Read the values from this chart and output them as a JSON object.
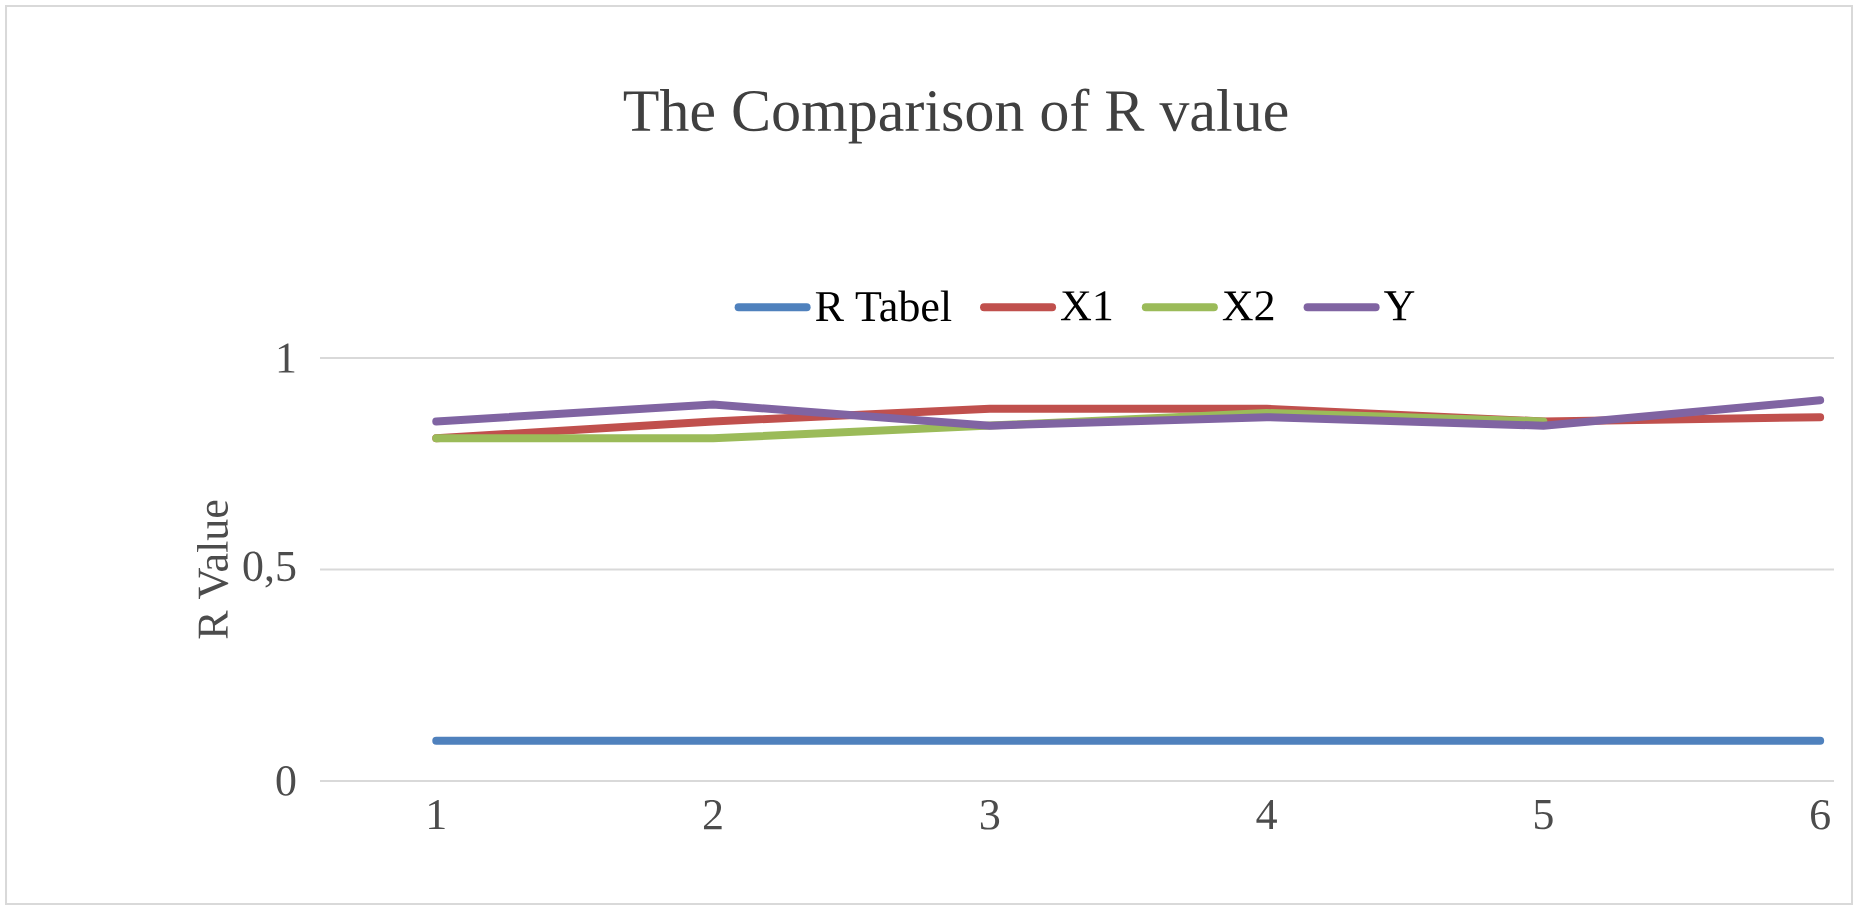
{
  "chart_data": {
    "type": "line",
    "title": "The Comparison of  R value",
    "ylabel": "R Value",
    "categories": [
      "1",
      "2",
      "3",
      "4",
      "5",
      "6"
    ],
    "series": [
      {
        "name": "R Tabel",
        "color": "#4f81bd",
        "values": [
          0.095,
          0.095,
          0.095,
          0.095,
          0.095,
          0.095
        ]
      },
      {
        "name": "X1",
        "color": "#c0504d",
        "values": [
          0.81,
          0.85,
          0.88,
          0.88,
          0.85,
          0.86
        ]
      },
      {
        "name": "X2",
        "color": "#9bbb59",
        "values": [
          0.81,
          0.81,
          0.84,
          0.87,
          0.85,
          null
        ]
      },
      {
        "name": "Y",
        "color": "#8064a2",
        "values": [
          0.85,
          0.89,
          0.84,
          0.86,
          0.84,
          0.9
        ]
      }
    ],
    "ylim": [
      0,
      1
    ],
    "yticks": [
      0,
      {
        "value": 0.5,
        "label": "0,5"
      },
      1
    ],
    "grid": "y",
    "legend": "top",
    "marker": "none",
    "line_style": "solid"
  }
}
